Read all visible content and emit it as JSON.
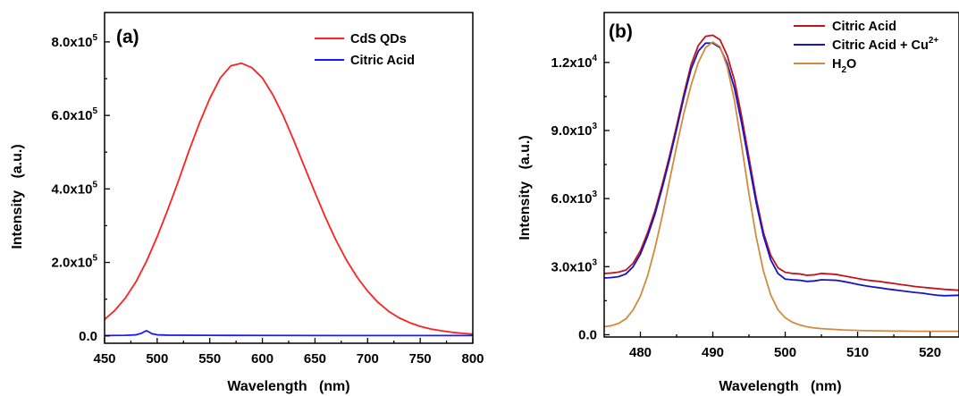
{
  "chart_data": [
    {
      "panel_label": "(a)",
      "type": "line",
      "xlabel": "Wavelength   (nm)",
      "ylabel": "Intensity   (a.u.)",
      "xlim": [
        450,
        800
      ],
      "ylim": [
        -20000,
        880000
      ],
      "xticks": [
        450,
        500,
        550,
        600,
        650,
        700,
        750,
        800
      ],
      "xtick_labels": [
        "450",
        "500",
        "550",
        "600",
        "650",
        "700",
        "750",
        "800"
      ],
      "yticks": [
        0,
        200000,
        400000,
        600000,
        800000
      ],
      "ytick_labels": [
        {
          "base": "0.0",
          "exp": ""
        },
        {
          "base": "2.0x10",
          "exp": "5"
        },
        {
          "base": "4.0x10",
          "exp": "5"
        },
        {
          "base": "6.0x10",
          "exp": "5"
        },
        {
          "base": "8.0x10",
          "exp": "5"
        }
      ],
      "legend": {
        "position": "top-right",
        "entries": [
          {
            "text": "CdS QDs",
            "sup": "",
            "sub": "",
            "after": ""
          },
          {
            "text": "Citric Acid",
            "sup": "",
            "sub": "",
            "after": ""
          }
        ]
      },
      "series": [
        {
          "name": "CdS QDs",
          "color": "#ff2020",
          "x": [
            450,
            460,
            470,
            480,
            490,
            500,
            510,
            520,
            530,
            540,
            550,
            560,
            570,
            580,
            590,
            600,
            610,
            620,
            630,
            640,
            650,
            660,
            670,
            680,
            690,
            700,
            710,
            720,
            730,
            740,
            750,
            760,
            770,
            780,
            790,
            800
          ],
          "y": [
            45000,
            70000,
            104000,
            148000,
            204000,
            270000,
            343000,
            420000,
            502000,
            578000,
            646000,
            702000,
            735000,
            742000,
            730000,
            702000,
            656000,
            598000,
            531000,
            460000,
            390000,
            322000,
            260000,
            206000,
            160000,
            122000,
            91000,
            67000,
            49000,
            36000,
            26000,
            19000,
            14000,
            10000,
            7000,
            5000
          ]
        },
        {
          "name": "Citric Acid",
          "color": "#1a1aff",
          "x": [
            450,
            470,
            480,
            485,
            488,
            490,
            492,
            495,
            500,
            510,
            550,
            600,
            700,
            800
          ],
          "y": [
            1000,
            1500,
            3000,
            7000,
            12000,
            14000,
            11000,
            6000,
            3000,
            2000,
            1500,
            1200,
            1000,
            1000
          ]
        }
      ]
    },
    {
      "panel_label": "(b)",
      "type": "line",
      "xlabel": "Wavelength   (nm)",
      "ylabel": "Intensity   (a.u.)",
      "xlim": [
        475,
        524
      ],
      "ylim": [
        -100,
        14200
      ],
      "xticks": [
        480,
        490,
        500,
        510,
        520
      ],
      "xtick_labels": [
        "480",
        "490",
        "500",
        "510",
        "520"
      ],
      "yticks": [
        0,
        3000,
        6000,
        9000,
        12000
      ],
      "ytick_labels": [
        {
          "base": "0.0",
          "exp": ""
        },
        {
          "base": "3.0x10",
          "exp": "3"
        },
        {
          "base": "6.0x10",
          "exp": "3"
        },
        {
          "base": "9.0x10",
          "exp": "3"
        },
        {
          "base": "1.2x10",
          "exp": "4"
        }
      ],
      "legend": {
        "position": "top-right",
        "entries": [
          {
            "text": "Citric Acid",
            "sup": "",
            "sub": "",
            "after": ""
          },
          {
            "text": "Citric Acid + Cu",
            "sup": "2+",
            "sub": "",
            "after": ""
          },
          {
            "text": "H",
            "sup": "",
            "sub": "2",
            "after": "O"
          }
        ]
      },
      "series": [
        {
          "name": "Citric Acid",
          "color": "#c0141e",
          "x": [
            475,
            476,
            477,
            478,
            479,
            480,
            481,
            482,
            483,
            484,
            485,
            486,
            487,
            488,
            489,
            490,
            491,
            492,
            493,
            494,
            495,
            496,
            497,
            498,
            499,
            500,
            501,
            502,
            503,
            504,
            505,
            506,
            507,
            508,
            509,
            510,
            511,
            512,
            513,
            514,
            515,
            516,
            517,
            518,
            519,
            520,
            521,
            522,
            523,
            524
          ],
          "y": [
            2700,
            2720,
            2760,
            2850,
            3150,
            3700,
            4500,
            5450,
            6600,
            7850,
            9200,
            10600,
            11900,
            12750,
            13150,
            13200,
            13000,
            12300,
            11200,
            9600,
            7800,
            6000,
            4500,
            3500,
            2950,
            2750,
            2700,
            2680,
            2620,
            2640,
            2700,
            2680,
            2660,
            2600,
            2540,
            2480,
            2420,
            2380,
            2350,
            2300,
            2260,
            2210,
            2170,
            2120,
            2090,
            2060,
            2030,
            2000,
            1980,
            1960
          ]
        },
        {
          "name": "Citric Acid + Cu2+",
          "color": "#1414c8",
          "x": [
            475,
            476,
            477,
            478,
            479,
            480,
            481,
            482,
            483,
            484,
            485,
            486,
            487,
            488,
            489,
            490,
            491,
            492,
            493,
            494,
            495,
            496,
            497,
            498,
            499,
            500,
            501,
            502,
            503,
            504,
            505,
            506,
            507,
            508,
            509,
            510,
            511,
            512,
            513,
            514,
            515,
            516,
            517,
            518,
            519,
            520,
            521,
            522,
            523,
            524
          ],
          "y": [
            2500,
            2520,
            2560,
            2680,
            3000,
            3550,
            4350,
            5300,
            6450,
            7700,
            9050,
            10450,
            11700,
            12500,
            12850,
            12850,
            12650,
            11950,
            10850,
            9300,
            7550,
            5800,
            4350,
            3300,
            2700,
            2450,
            2420,
            2400,
            2350,
            2370,
            2420,
            2410,
            2400,
            2350,
            2290,
            2220,
            2160,
            2110,
            2070,
            2020,
            1980,
            1940,
            1900,
            1860,
            1830,
            1780,
            1740,
            1720,
            1730,
            1740
          ]
        },
        {
          "name": "H2O",
          "color": "#d18b3c",
          "x": [
            475,
            476,
            477,
            478,
            479,
            480,
            481,
            482,
            483,
            484,
            485,
            486,
            487,
            488,
            489,
            490,
            491,
            492,
            493,
            494,
            495,
            496,
            497,
            498,
            499,
            500,
            501,
            502,
            503,
            504,
            505,
            506,
            507,
            508,
            509,
            510,
            511,
            512,
            513,
            514,
            515,
            516,
            517,
            518,
            519,
            520,
            521,
            522,
            523,
            524
          ],
          "y": [
            350,
            400,
            500,
            700,
            1100,
            1700,
            2600,
            3800,
            5200,
            6750,
            8300,
            9750,
            11000,
            12000,
            12650,
            12900,
            12700,
            11800,
            10300,
            8300,
            6200,
            4300,
            2800,
            1750,
            1100,
            750,
            550,
            430,
            350,
            300,
            270,
            250,
            230,
            210,
            200,
            190,
            180,
            175,
            170,
            165,
            160,
            160,
            155,
            150,
            150,
            150,
            150,
            150,
            150,
            150
          ]
        }
      ]
    }
  ]
}
